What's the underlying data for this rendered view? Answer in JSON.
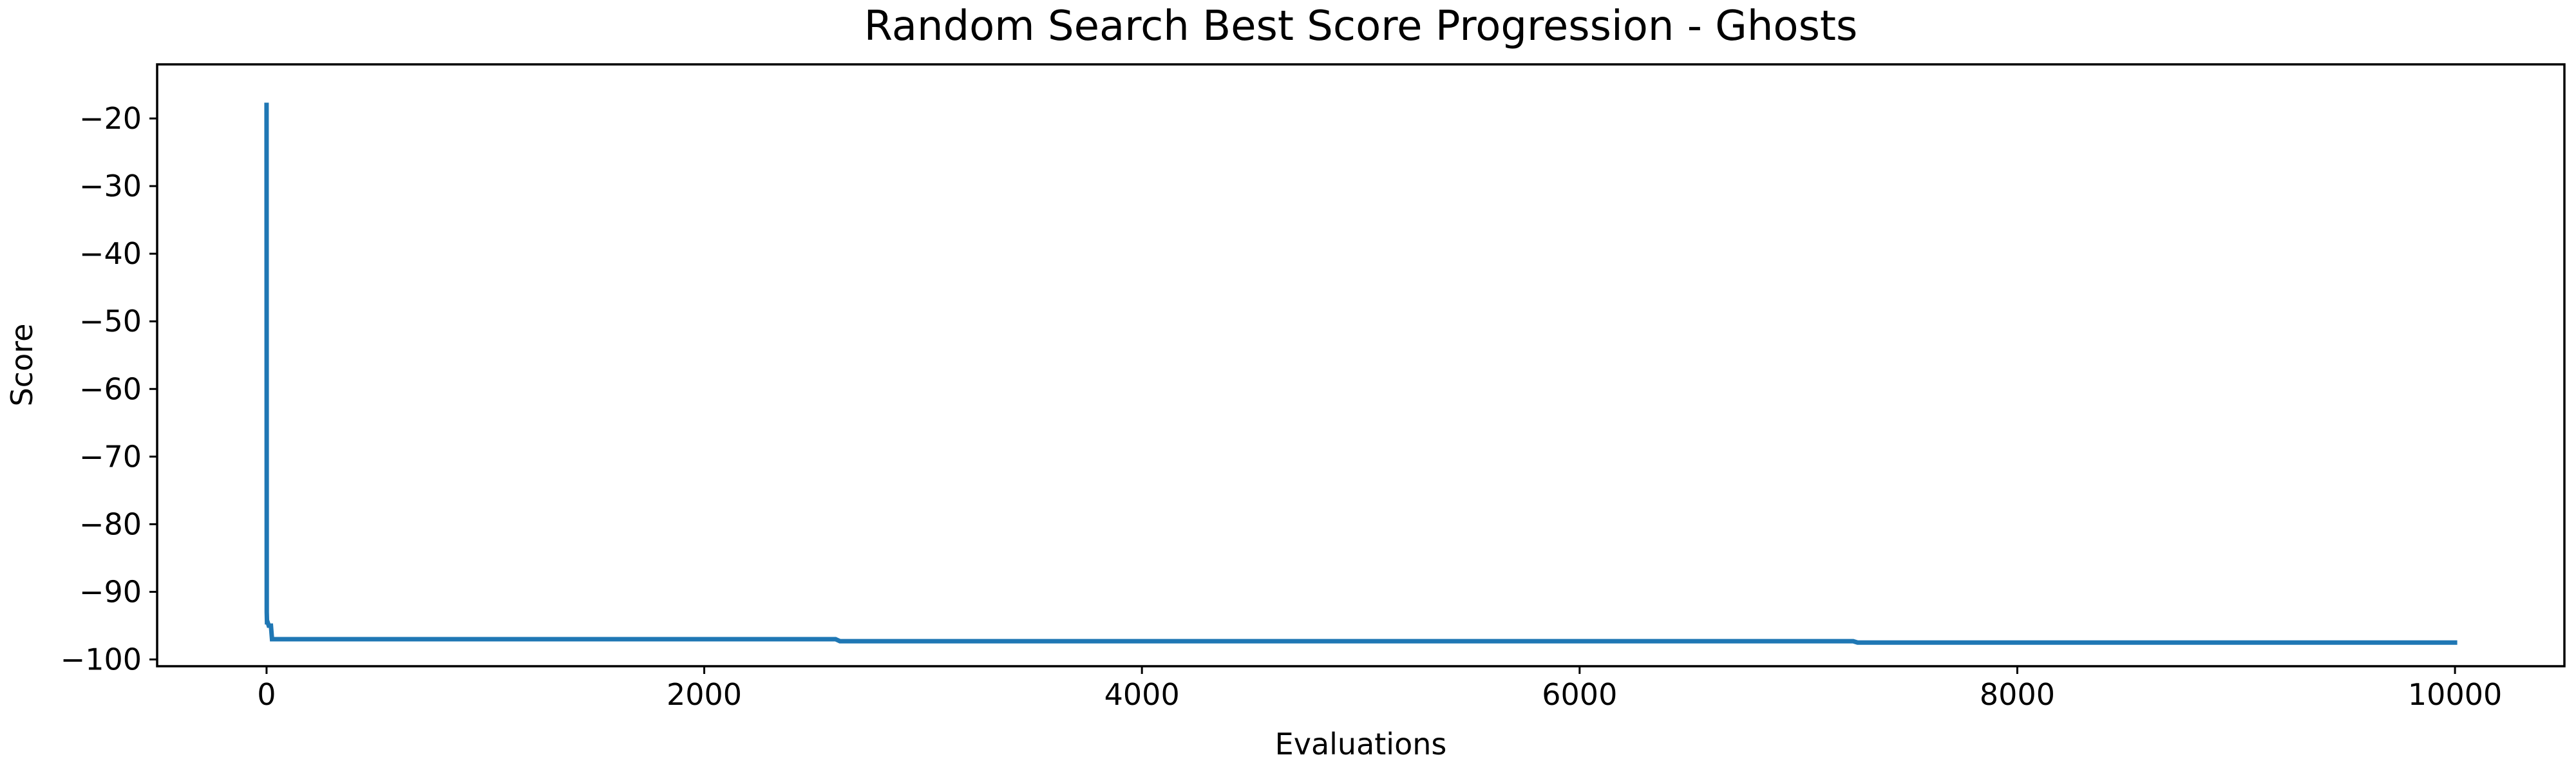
{
  "chart_data": {
    "type": "line",
    "title": "Random Search Best Score Progression - Ghosts",
    "xlabel": "Evaluations",
    "ylabel": "Score",
    "xlim": [
      -500,
      10500
    ],
    "ylim": [
      -101,
      -12
    ],
    "xticks": [
      0,
      2000,
      4000,
      6000,
      8000,
      10000
    ],
    "yticks": [
      -20,
      -30,
      -40,
      -50,
      -60,
      -70,
      -80,
      -90,
      -100
    ],
    "grid": false,
    "legend": "none",
    "series": [
      {
        "color": "#1f77b4",
        "x": [
          0,
          1,
          2,
          5,
          10,
          20,
          25,
          30,
          2600,
          2620,
          7250,
          7270,
          10000
        ],
        "y": [
          -18,
          -93,
          -94.5,
          -94.5,
          -95,
          -95,
          -97,
          -97,
          -97,
          -97.3,
          -97.3,
          -97.5,
          -97.5
        ]
      }
    ]
  }
}
